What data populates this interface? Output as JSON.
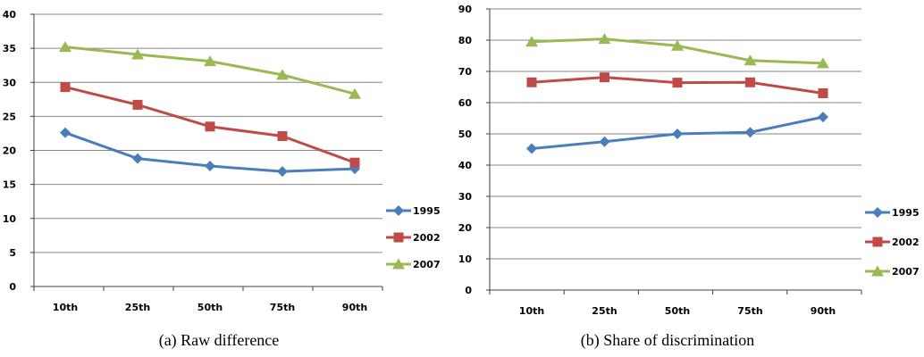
{
  "colors": {
    "1995": "#4a7ebb",
    "2002": "#be4b48",
    "2007": "#98b954",
    "grid": "#868686",
    "axis": "#404040"
  },
  "chart_data": [
    {
      "type": "line",
      "caption": "(a)  Raw difference",
      "categories": [
        "10th",
        "25th",
        "50th",
        "75th",
        "90th"
      ],
      "ylim": [
        0,
        40
      ],
      "yticks": [
        0,
        5,
        10,
        15,
        20,
        25,
        30,
        35,
        40
      ],
      "grid": true,
      "legend_position": "right",
      "series": [
        {
          "name": "1995",
          "marker": "diamond",
          "values": [
            22.6,
            18.8,
            17.7,
            16.9,
            17.3
          ]
        },
        {
          "name": "2002",
          "marker": "square",
          "values": [
            29.3,
            26.7,
            23.5,
            22.1,
            18.2
          ]
        },
        {
          "name": "2007",
          "marker": "triangle",
          "values": [
            35.2,
            34.1,
            33.1,
            31.1,
            28.3
          ]
        }
      ]
    },
    {
      "type": "line",
      "caption": "(b) Share of discrimination",
      "categories": [
        "10th",
        "25th",
        "50th",
        "75th",
        "90th"
      ],
      "ylim": [
        0,
        90
      ],
      "yticks": [
        0,
        10,
        20,
        30,
        40,
        50,
        60,
        70,
        80,
        90
      ],
      "grid": true,
      "legend_position": "right",
      "series": [
        {
          "name": "1995",
          "marker": "diamond",
          "values": [
            45.3,
            47.5,
            50.0,
            50.5,
            55.4
          ]
        },
        {
          "name": "2002",
          "marker": "square",
          "values": [
            66.5,
            68.1,
            66.4,
            66.5,
            63.0
          ]
        },
        {
          "name": "2007",
          "marker": "triangle",
          "values": [
            79.5,
            80.4,
            78.2,
            73.5,
            72.6
          ]
        }
      ]
    }
  ]
}
